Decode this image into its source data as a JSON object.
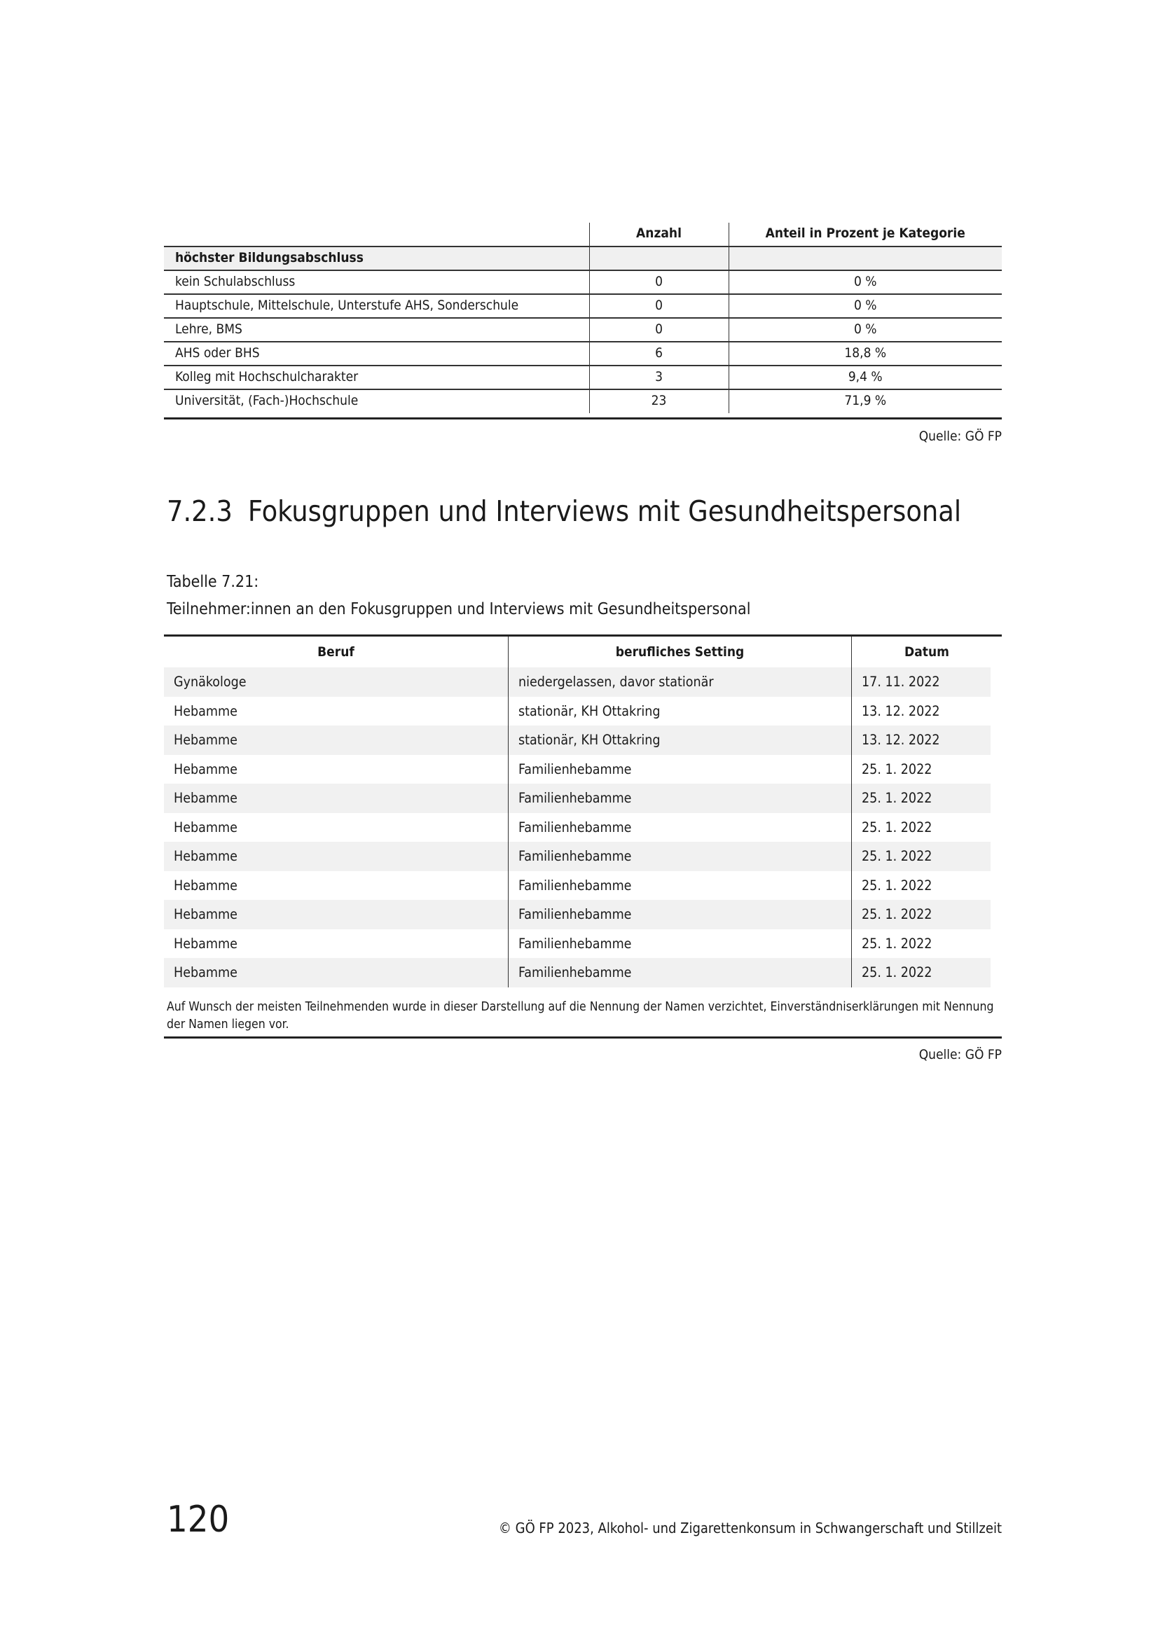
{
  "table1": {
    "headers": [
      "",
      "Anzahl",
      "Anteil in Prozent je Kategorie"
    ],
    "group": "höchster Bildungsabschluss",
    "rows": [
      {
        "label": "kein Schulabschluss",
        "count": "0",
        "pct": "0 %"
      },
      {
        "label": "Hauptschule, Mittelschule, Unterstufe AHS, Sonderschule",
        "count": "0",
        "pct": "0 %"
      },
      {
        "label": "Lehre, BMS",
        "count": "0",
        "pct": "0 %"
      },
      {
        "label": "AHS oder BHS",
        "count": "6",
        "pct": "18,8 %"
      },
      {
        "label": "Kolleg mit Hochschulcharakter",
        "count": "3",
        "pct": "9,4 %"
      },
      {
        "label": "Universität, (Fach-)Hochschule",
        "count": "23",
        "pct": "71,9 %"
      }
    ],
    "source": "Quelle: GÖ FP"
  },
  "section": {
    "number": "7.2.3",
    "title": "Fokusgruppen und Interviews mit Gesundheitspersonal"
  },
  "table2": {
    "caption_label": "Tabelle 7.21:",
    "caption_title": "Teilnehmer:innen an den Fokusgruppen und Interviews mit Gesundheitspersonal",
    "headers": [
      "Beruf",
      "berufliches Setting",
      "Datum"
    ],
    "rows": [
      [
        "Gynäkologe",
        "niedergelassen, davor stationär",
        "17. 11. 2022"
      ],
      [
        "Hebamme",
        "stationär, KH Ottakring",
        "13. 12. 2022"
      ],
      [
        "Hebamme",
        "stationär, KH Ottakring",
        "13. 12. 2022"
      ],
      [
        "Hebamme",
        "Familienhebamme",
        "25. 1. 2022"
      ],
      [
        "Hebamme",
        "Familienhebamme",
        "25. 1. 2022"
      ],
      [
        "Hebamme",
        "Familienhebamme",
        "25. 1. 2022"
      ],
      [
        "Hebamme",
        "Familienhebamme",
        "25. 1. 2022"
      ],
      [
        "Hebamme",
        "Familienhebamme",
        "25. 1. 2022"
      ],
      [
        "Hebamme",
        "Familienhebamme",
        "25. 1. 2022"
      ],
      [
        "Hebamme",
        "Familienhebamme",
        "25. 1. 2022"
      ],
      [
        "Hebamme",
        "Familienhebamme",
        "25. 1. 2022"
      ]
    ],
    "note": "Auf Wunsch der meisten Teilnehmenden wurde in dieser Darstellung auf die Nennung der Namen verzichtet, Einverständniserklärungen mit Nennung der Namen liegen vor.",
    "source": "Quelle: GÖ FP"
  },
  "footer": {
    "page_number": "120",
    "text": "© GÖ FP 2023, Alkohol- und Zigarettenkonsum in Schwangerschaft und Stillzeit"
  }
}
